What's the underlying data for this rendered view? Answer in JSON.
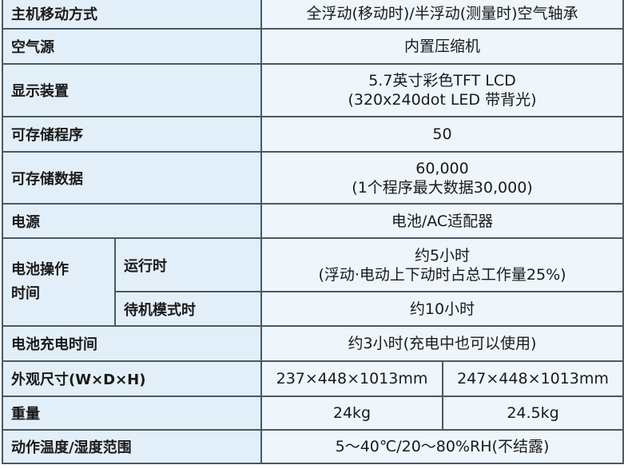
{
  "rows": {
    "move_mode": {
      "label": "主机移动方式",
      "value": "全浮动(移动时)/半浮动(测量时)空气轴承"
    },
    "air_source": {
      "label": "空气源",
      "value": "内置压缩机"
    },
    "display": {
      "label": "显示装置",
      "value_line1": "5.7英寸彩色TFT LCD",
      "value_line2": "(320x240dot LED 带背光)"
    },
    "programs": {
      "label": "可存储程序",
      "value": "50"
    },
    "data": {
      "label": "可存储数据",
      "value_line1": "60,000",
      "value_line2": "(1个程序最大数据30,000)"
    },
    "power": {
      "label": "电源",
      "value": "电池/AC适配器"
    },
    "battery_time": {
      "label_line1": "电池操作",
      "label_line2": "时间",
      "running": {
        "label": "运行时",
        "value_line1": "约5小时",
        "value_line2": "(浮动·电动上下动时占总工作量25%)"
      },
      "standby": {
        "label": "待机模式时",
        "value": "约10小时"
      }
    },
    "charge_time": {
      "label": "电池充电时间",
      "value": "约3小时(充电中也可以使用)"
    },
    "dimensions": {
      "label": "外观尺寸(W×D×H)",
      "value_a": "237×448×1013mm",
      "value_b": "247×448×1013mm"
    },
    "weight": {
      "label": "重量",
      "value_a": "24kg",
      "value_b": "24.5kg"
    },
    "environment": {
      "label": "动作温度/湿度范围",
      "value": "5～40℃/20～80%RH(不结露)"
    }
  }
}
